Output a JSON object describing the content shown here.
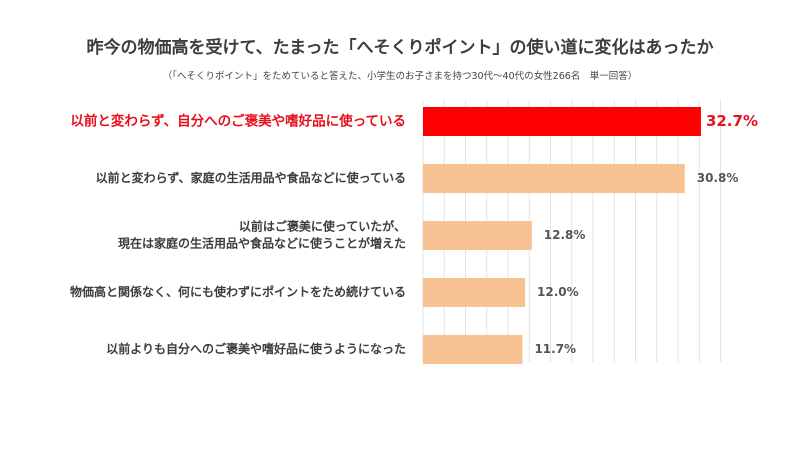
{
  "chart_data": {
    "type": "bar",
    "orientation": "horizontal",
    "title": "昨今の物価高を受けて、たまった「へそくりポイント」の使い道に変化はあったか",
    "subtitle": "（「へそくりポイント」をためていると答えた、小学生のお子さまを持つ30代〜40代の女性266名　単一回答）",
    "categories": [
      [
        "以前と変わらず、自分へのご褒美や嗜好品に使っている"
      ],
      [
        "以前と変わらず、家庭の生活用品や食品などに使っている"
      ],
      [
        "以前はご褒美に使っていたが、",
        "現在は家庭の生活用品や食品などに使うことが増えた"
      ],
      [
        "物価高と関係なく、何にも使わずにポイントをため続けている"
      ],
      [
        "以前よりも自分へのご褒美や嗜好品に使うようになった"
      ]
    ],
    "values": [
      32.7,
      30.8,
      12.8,
      12.0,
      11.7
    ],
    "value_labels": [
      "32.7%",
      "30.8%",
      "12.8%",
      "12.0%",
      "11.7%"
    ],
    "highlight_index": 0,
    "xlim": [
      0,
      35
    ],
    "grid": true,
    "colors": {
      "highlight": "#ff0000",
      "bar": "#f8c191",
      "grid": "#e3e3e3",
      "highlight_text": "#e8101b"
    }
  }
}
